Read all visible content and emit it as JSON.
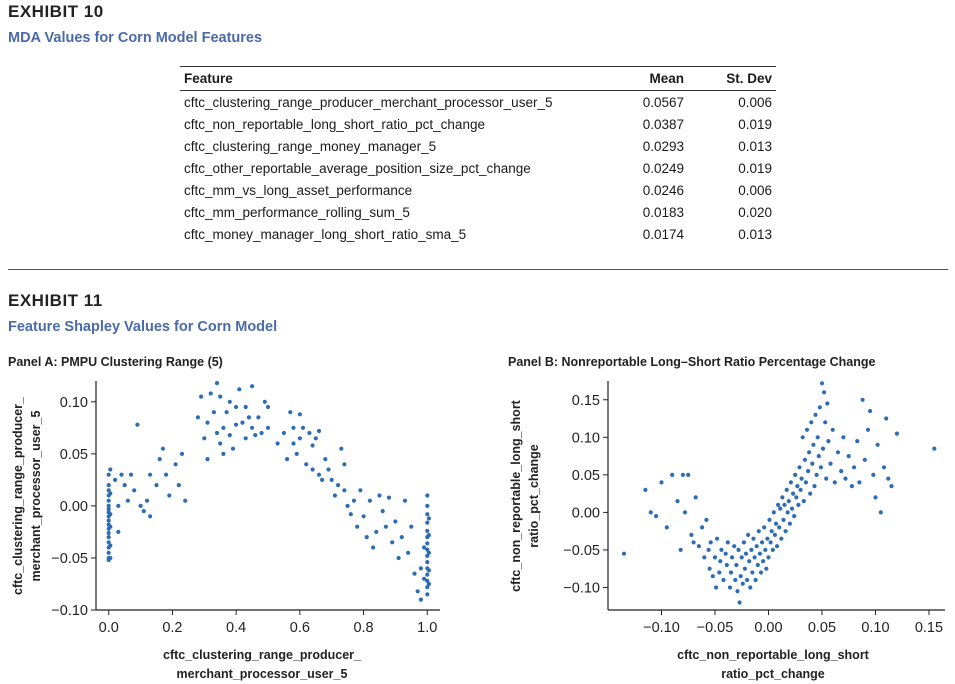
{
  "exhibit10": {
    "title": "EXHIBIT 10",
    "subtitle": "MDA Values for Corn Model Features",
    "columns": [
      "Feature",
      "Mean",
      "St. Dev"
    ],
    "rows": [
      [
        "cftc_clustering_range_producer_merchant_processor_user_5",
        "0.0567",
        "0.006"
      ],
      [
        "cftc_non_reportable_long_short_ratio_pct_change",
        "0.0387",
        "0.019"
      ],
      [
        "cftc_clustering_range_money_manager_5",
        "0.0293",
        "0.013"
      ],
      [
        "cftc_other_reportable_average_position_size_pct_change",
        "0.0249",
        "0.019"
      ],
      [
        "cftc_mm_vs_long_asset_performance",
        "0.0246",
        "0.006"
      ],
      [
        "cftc_mm_performance_rolling_sum_5",
        "0.0183",
        "0.020"
      ],
      [
        "cftc_money_manager_long_short_ratio_sma_5",
        "0.0174",
        "0.013"
      ]
    ]
  },
  "exhibit11": {
    "title": "EXHIBIT 11",
    "subtitle": "Feature Shapley Values for Corn Model"
  },
  "colors": {
    "accent": "#4a6aa8",
    "point": "#2e6db4"
  },
  "chart_data": [
    {
      "type": "scatter",
      "title": "Panel A: PMPU Clustering Range (5)",
      "xlabel": [
        "cftc_clustering_range_producer_",
        "merchant_processor_user_5"
      ],
      "ylabel": [
        "cftc_clustering_range_producer_",
        "merchant_processor_user_5"
      ],
      "xlim": [
        -0.04,
        1.04
      ],
      "ylim": [
        -0.1,
        0.12
      ],
      "xticks": [
        0.0,
        0.2,
        0.4,
        0.6,
        0.8,
        1.0
      ],
      "xtick_labels": [
        "0.0",
        "0.2",
        "0.4",
        "0.6",
        "0.8",
        "1.0"
      ],
      "yticks": [
        -0.1,
        -0.05,
        0.0,
        0.05,
        0.1
      ],
      "ytick_labels": [
        "−0.10",
        "−0.05",
        "0.00",
        "0.05",
        "0.10"
      ],
      "points": [
        [
          0.0,
          0.03
        ],
        [
          0.0,
          0.02
        ],
        [
          0.0,
          0.015
        ],
        [
          0.0,
          0.01
        ],
        [
          0.0,
          0.005
        ],
        [
          0.0,
          0.0
        ],
        [
          0.0,
          -0.003
        ],
        [
          0.0,
          -0.006
        ],
        [
          0.0,
          -0.01
        ],
        [
          0.0,
          -0.014
        ],
        [
          0.0,
          -0.018
        ],
        [
          0.0,
          -0.022
        ],
        [
          0.0,
          -0.026
        ],
        [
          0.0,
          -0.03
        ],
        [
          0.0,
          -0.035
        ],
        [
          0.0,
          -0.04
        ],
        [
          0.0,
          -0.045
        ],
        [
          0.0,
          -0.05
        ],
        [
          0.0,
          -0.052
        ],
        [
          0.005,
          0.035
        ],
        [
          0.005,
          0.012
        ],
        [
          0.005,
          -0.008
        ],
        [
          0.005,
          -0.02
        ],
        [
          0.005,
          -0.038
        ],
        [
          0.005,
          -0.05
        ],
        [
          0.02,
          0.025
        ],
        [
          0.03,
          0.0
        ],
        [
          0.03,
          -0.025
        ],
        [
          0.04,
          0.03
        ],
        [
          0.05,
          0.02
        ],
        [
          0.06,
          0.005
        ],
        [
          0.07,
          0.03
        ],
        [
          0.08,
          0.015
        ],
        [
          0.09,
          0.078
        ],
        [
          0.1,
          0.0
        ],
        [
          0.11,
          -0.005
        ],
        [
          0.12,
          0.005
        ],
        [
          0.13,
          -0.01
        ],
        [
          0.13,
          0.03
        ],
        [
          0.15,
          0.02
        ],
        [
          0.16,
          0.045
        ],
        [
          0.17,
          0.055
        ],
        [
          0.18,
          0.03
        ],
        [
          0.19,
          0.01
        ],
        [
          0.21,
          0.04
        ],
        [
          0.22,
          0.02
        ],
        [
          0.23,
          0.05
        ],
        [
          0.24,
          0.005
        ],
        [
          0.28,
          0.085
        ],
        [
          0.29,
          0.105
        ],
        [
          0.3,
          0.065
        ],
        [
          0.31,
          0.08
        ],
        [
          0.31,
          0.045
        ],
        [
          0.32,
          0.108
        ],
        [
          0.33,
          0.09
        ],
        [
          0.34,
          0.07
        ],
        [
          0.34,
          0.118
        ],
        [
          0.35,
          0.105
        ],
        [
          0.35,
          0.06
        ],
        [
          0.36,
          0.075
        ],
        [
          0.36,
          0.05
        ],
        [
          0.37,
          0.09
        ],
        [
          0.38,
          0.068
        ],
        [
          0.38,
          0.1
        ],
        [
          0.39,
          0.055
        ],
        [
          0.4,
          0.095
        ],
        [
          0.4,
          0.078
        ],
        [
          0.41,
          0.112
        ],
        [
          0.42,
          0.08
        ],
        [
          0.43,
          0.065
        ],
        [
          0.43,
          0.095
        ],
        [
          0.44,
          0.085
        ],
        [
          0.45,
          0.075
        ],
        [
          0.45,
          0.115
        ],
        [
          0.46,
          0.068
        ],
        [
          0.47,
          0.085
        ],
        [
          0.48,
          0.07
        ],
        [
          0.49,
          0.1
        ],
        [
          0.5,
          0.095
        ],
        [
          0.5,
          0.075
        ],
        [
          0.53,
          0.06
        ],
        [
          0.55,
          0.07
        ],
        [
          0.56,
          0.045
        ],
        [
          0.57,
          0.09
        ],
        [
          0.58,
          0.06
        ],
        [
          0.58,
          0.075
        ],
        [
          0.59,
          0.05
        ],
        [
          0.6,
          0.088
        ],
        [
          0.6,
          0.065
        ],
        [
          0.61,
          0.075
        ],
        [
          0.62,
          0.04
        ],
        [
          0.63,
          0.07
        ],
        [
          0.64,
          0.058
        ],
        [
          0.64,
          0.035
        ],
        [
          0.65,
          0.065
        ],
        [
          0.66,
          0.03
        ],
        [
          0.66,
          0.072
        ],
        [
          0.67,
          0.025
        ],
        [
          0.68,
          0.045
        ],
        [
          0.69,
          0.035
        ],
        [
          0.7,
          0.025
        ],
        [
          0.71,
          0.01
        ],
        [
          0.72,
          0.02
        ],
        [
          0.73,
          0.055
        ],
        [
          0.74,
          0.04
        ],
        [
          0.74,
          0.015
        ],
        [
          0.75,
          0.0
        ],
        [
          0.76,
          -0.008
        ],
        [
          0.77,
          0.005
        ],
        [
          0.78,
          -0.02
        ],
        [
          0.79,
          0.015
        ],
        [
          0.8,
          -0.01
        ],
        [
          0.81,
          -0.03
        ],
        [
          0.82,
          0.005
        ],
        [
          0.83,
          -0.04
        ],
        [
          0.84,
          -0.025
        ],
        [
          0.85,
          0.01
        ],
        [
          0.86,
          -0.005
        ],
        [
          0.87,
          -0.02
        ],
        [
          0.88,
          0.008
        ],
        [
          0.89,
          -0.035
        ],
        [
          0.9,
          -0.015
        ],
        [
          0.91,
          -0.05
        ],
        [
          0.92,
          -0.03
        ],
        [
          0.93,
          0.005
        ],
        [
          0.94,
          -0.045
        ],
        [
          0.95,
          -0.02
        ],
        [
          0.96,
          -0.065
        ],
        [
          0.97,
          -0.082
        ],
        [
          0.98,
          -0.06
        ],
        [
          0.98,
          -0.09
        ],
        [
          0.99,
          -0.04
        ],
        [
          0.99,
          -0.07
        ],
        [
          1.0,
          0.01
        ],
        [
          1.0,
          0.0
        ],
        [
          1.0,
          -0.008
        ],
        [
          1.0,
          -0.016
        ],
        [
          1.0,
          -0.024
        ],
        [
          1.0,
          -0.03
        ],
        [
          1.0,
          -0.036
        ],
        [
          1.0,
          -0.042
        ],
        [
          1.0,
          -0.048
        ],
        [
          1.0,
          -0.054
        ],
        [
          1.0,
          -0.06
        ],
        [
          1.0,
          -0.066
        ],
        [
          1.0,
          -0.072
        ],
        [
          1.0,
          -0.078
        ],
        [
          1.0,
          -0.085
        ],
        [
          1.005,
          -0.012
        ],
        [
          1.005,
          -0.028
        ],
        [
          1.005,
          -0.045
        ],
        [
          1.005,
          -0.062
        ],
        [
          1.005,
          -0.075
        ]
      ]
    },
    {
      "type": "scatter",
      "title": "Panel B: Nonreportable Long–Short Ratio Percentage Change",
      "xlabel": [
        "cftc_non_reportable_long_short",
        "ratio_pct_change"
      ],
      "ylabel": [
        "cftc_non_reportable_long_short",
        "ratio_pct_change"
      ],
      "xlim": [
        -0.15,
        0.165
      ],
      "ylim": [
        -0.13,
        0.175
      ],
      "xticks": [
        -0.1,
        -0.05,
        0.0,
        0.05,
        0.1,
        0.15
      ],
      "xtick_labels": [
        "−0.10",
        "−0.05",
        "0.00",
        "0.05",
        "0.10",
        "0.15"
      ],
      "yticks": [
        -0.1,
        -0.05,
        0.0,
        0.05,
        0.1,
        0.15
      ],
      "ytick_labels": [
        "−0.10",
        "−0.05",
        "0.00",
        "0.05",
        "0.10",
        "0.15"
      ],
      "points": [
        [
          -0.135,
          -0.055
        ],
        [
          -0.115,
          0.03
        ],
        [
          -0.11,
          0.0
        ],
        [
          -0.105,
          -0.005
        ],
        [
          -0.1,
          0.04
        ],
        [
          -0.095,
          -0.02
        ],
        [
          -0.09,
          0.05
        ],
        [
          -0.085,
          0.015
        ],
        [
          -0.082,
          -0.05
        ],
        [
          -0.08,
          0.05
        ],
        [
          -0.078,
          0.0
        ],
        [
          -0.075,
          0.05
        ],
        [
          -0.072,
          -0.03
        ],
        [
          -0.07,
          -0.04
        ],
        [
          -0.068,
          0.02
        ],
        [
          -0.065,
          -0.045
        ],
        [
          -0.062,
          -0.02
        ],
        [
          -0.06,
          -0.06
        ],
        [
          -0.058,
          -0.01
        ],
        [
          -0.056,
          -0.05
        ],
        [
          -0.055,
          -0.075
        ],
        [
          -0.054,
          -0.04
        ],
        [
          -0.052,
          -0.085
        ],
        [
          -0.05,
          -0.06
        ],
        [
          -0.049,
          -0.1
        ],
        [
          -0.048,
          -0.035
        ],
        [
          -0.046,
          -0.08
        ],
        [
          -0.045,
          -0.065
        ],
        [
          -0.044,
          -0.05
        ],
        [
          -0.042,
          -0.09
        ],
        [
          -0.04,
          -0.055
        ],
        [
          -0.039,
          -0.07
        ],
        [
          -0.038,
          -0.04
        ],
        [
          -0.036,
          -0.1
        ],
        [
          -0.035,
          -0.08
        ],
        [
          -0.034,
          -0.06
        ],
        [
          -0.032,
          -0.045
        ],
        [
          -0.031,
          -0.09
        ],
        [
          -0.03,
          -0.07
        ],
        [
          -0.029,
          -0.105
        ],
        [
          -0.028,
          -0.05
        ],
        [
          -0.027,
          -0.12
        ],
        [
          -0.026,
          -0.085
        ],
        [
          -0.025,
          -0.06
        ],
        [
          -0.024,
          -0.095
        ],
        [
          -0.023,
          -0.04
        ],
        [
          -0.022,
          -0.075
        ],
        [
          -0.021,
          -0.055
        ],
        [
          -0.02,
          -0.09
        ],
        [
          -0.019,
          -0.03
        ],
        [
          -0.018,
          -0.065
        ],
        [
          -0.017,
          -0.1
        ],
        [
          -0.016,
          -0.05
        ],
        [
          -0.015,
          -0.08
        ],
        [
          -0.014,
          -0.035
        ],
        [
          -0.013,
          -0.06
        ],
        [
          -0.012,
          -0.09
        ],
        [
          -0.011,
          -0.045
        ],
        [
          -0.01,
          -0.07
        ],
        [
          -0.009,
          -0.025
        ],
        [
          -0.008,
          -0.055
        ],
        [
          -0.007,
          -0.08
        ],
        [
          -0.006,
          -0.04
        ],
        [
          -0.005,
          -0.065
        ],
        [
          -0.004,
          -0.02
        ],
        [
          -0.003,
          -0.05
        ],
        [
          -0.002,
          -0.075
        ],
        [
          -0.001,
          -0.035
        ],
        [
          0.0,
          -0.06
        ],
        [
          0.001,
          -0.01
        ],
        [
          0.002,
          -0.04
        ],
        [
          0.003,
          -0.025
        ],
        [
          0.004,
          -0.05
        ],
        [
          0.005,
          0.0
        ],
        [
          0.006,
          -0.03
        ],
        [
          0.007,
          -0.015
        ],
        [
          0.008,
          -0.045
        ],
        [
          0.009,
          0.01
        ],
        [
          0.01,
          -0.02
        ],
        [
          0.011,
          0.005
        ],
        [
          0.012,
          -0.035
        ],
        [
          0.013,
          0.02
        ],
        [
          0.014,
          -0.01
        ],
        [
          0.015,
          0.01
        ],
        [
          0.016,
          -0.025
        ],
        [
          0.017,
          0.03
        ],
        [
          0.018,
          0.0
        ],
        [
          0.019,
          0.015
        ],
        [
          0.02,
          -0.015
        ],
        [
          0.021,
          0.04
        ],
        [
          0.022,
          0.005
        ],
        [
          0.023,
          0.025
        ],
        [
          0.024,
          -0.005
        ],
        [
          0.025,
          0.05
        ],
        [
          0.026,
          0.02
        ],
        [
          0.027,
          0.035
        ],
        [
          0.028,
          0.01
        ],
        [
          0.029,
          0.06
        ],
        [
          0.03,
          0.03
        ],
        [
          0.031,
          0.045
        ],
        [
          0.032,
          0.1
        ],
        [
          0.033,
          0.015
        ],
        [
          0.034,
          0.07
        ],
        [
          0.035,
          0.04
        ],
        [
          0.036,
          0.11
        ],
        [
          0.037,
          0.055
        ],
        [
          0.038,
          0.08
        ],
        [
          0.039,
          0.025
        ],
        [
          0.04,
          0.12
        ],
        [
          0.041,
          0.065
        ],
        [
          0.042,
          0.09
        ],
        [
          0.043,
          0.035
        ],
        [
          0.044,
          0.13
        ],
        [
          0.045,
          0.05
        ],
        [
          0.046,
          0.1
        ],
        [
          0.047,
          0.075
        ],
        [
          0.048,
          0.14
        ],
        [
          0.049,
          0.06
        ],
        [
          0.05,
          0.172
        ],
        [
          0.051,
          0.085
        ],
        [
          0.052,
          0.16
        ],
        [
          0.053,
          0.12
        ],
        [
          0.054,
          0.045
        ],
        [
          0.055,
          0.145
        ],
        [
          0.056,
          0.095
        ],
        [
          0.058,
          0.065
        ],
        [
          0.06,
          0.11
        ],
        [
          0.062,
          0.04
        ],
        [
          0.065,
          0.08
        ],
        [
          0.068,
          0.055
        ],
        [
          0.07,
          0.1
        ],
        [
          0.072,
          0.045
        ],
        [
          0.075,
          0.075
        ],
        [
          0.078,
          0.035
        ],
        [
          0.08,
          0.06
        ],
        [
          0.083,
          0.095
        ],
        [
          0.085,
          0.04
        ],
        [
          0.088,
          0.15
        ],
        [
          0.09,
          0.07
        ],
        [
          0.093,
          0.11
        ],
        [
          0.095,
          0.135
        ],
        [
          0.098,
          0.05
        ],
        [
          0.1,
          0.02
        ],
        [
          0.102,
          0.09
        ],
        [
          0.105,
          0.0
        ],
        [
          0.108,
          0.06
        ],
        [
          0.11,
          0.125
        ],
        [
          0.112,
          0.045
        ],
        [
          0.115,
          0.035
        ],
        [
          0.12,
          0.105
        ],
        [
          0.155,
          0.085
        ]
      ]
    }
  ]
}
